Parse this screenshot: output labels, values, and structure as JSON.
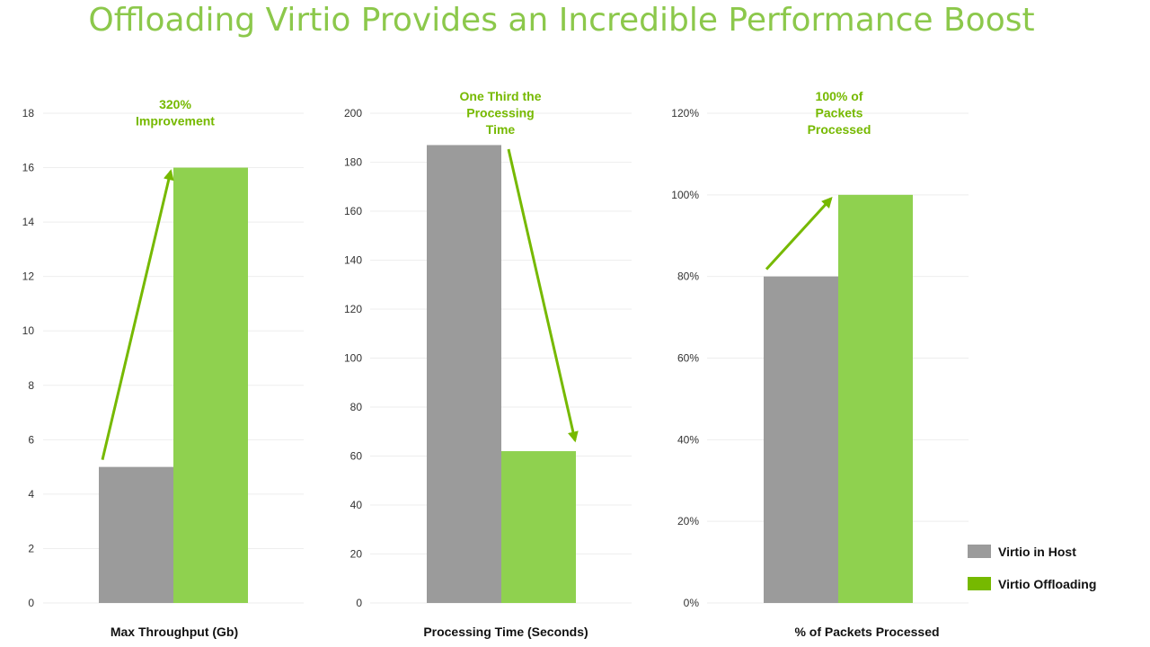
{
  "title": "Offloading Virtio Provides an Incredible Performance Boost",
  "colors": {
    "title": "#8cc84b",
    "host": "#9b9b9b",
    "offload_bar": "#8fd14f",
    "offload_legend": "#76b900",
    "arrow": "#76b900",
    "annotation": "#76b900",
    "grid": "#eeeeee"
  },
  "legend": {
    "items": [
      {
        "label": "Virtio in Host",
        "color": "#9b9b9b"
      },
      {
        "label": "Virtio Offloading",
        "color": "#76b900"
      }
    ]
  },
  "chart_data": [
    {
      "type": "bar",
      "categories": [
        "Virtio in Host",
        "Virtio Offloading"
      ],
      "values": [
        5,
        16
      ],
      "xlabel": "Max Throughput (Gb)",
      "ylabel": "",
      "ylim": [
        0,
        18
      ],
      "yticks": [
        "0",
        "2",
        "4",
        "6",
        "8",
        "10",
        "12",
        "14",
        "16",
        "18"
      ],
      "annotation": [
        "320%",
        "Improvement"
      ],
      "arrow": "up",
      "grid": true
    },
    {
      "type": "bar",
      "categories": [
        "Virtio in Host",
        "Virtio Offloading"
      ],
      "values": [
        187,
        62
      ],
      "xlabel": "Processing Time (Seconds)",
      "ylabel": "",
      "ylim": [
        0,
        200
      ],
      "yticks": [
        "0",
        "20",
        "40",
        "60",
        "80",
        "100",
        "120",
        "140",
        "160",
        "180",
        "200"
      ],
      "annotation": [
        "One Third the",
        "Processing",
        "Time"
      ],
      "arrow": "down",
      "grid": true
    },
    {
      "type": "bar",
      "categories": [
        "Virtio in Host",
        "Virtio Offloading"
      ],
      "values": [
        0.8,
        1.0
      ],
      "xlabel": "% of Packets Processed",
      "ylabel": "",
      "ylim": [
        0,
        1.2
      ],
      "yticks": [
        "0%",
        "20%",
        "40%",
        "60%",
        "80%",
        "100%",
        "120%"
      ],
      "annotation": [
        "100% of",
        "Packets",
        "Processed"
      ],
      "arrow": "up",
      "grid": true
    }
  ]
}
